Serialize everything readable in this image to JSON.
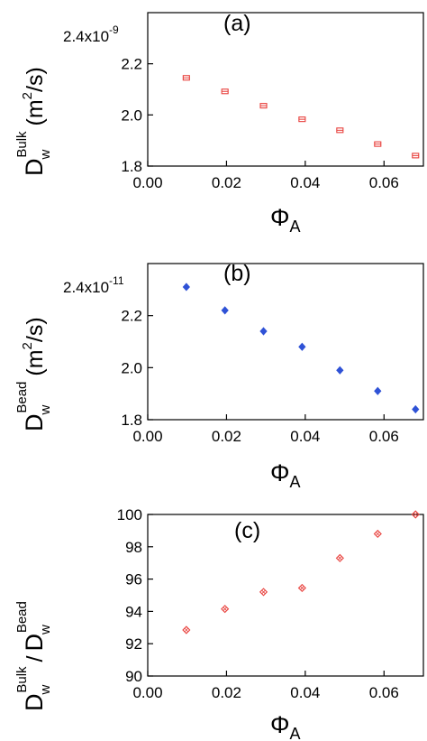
{
  "chart_data": [
    {
      "type": "scatter",
      "panel_label": "(a)",
      "y_scale_note": {
        "mantissa": "2.4x10",
        "exponent": "-9"
      },
      "xlabel": {
        "main": "Φ",
        "sub": "A"
      },
      "ylabel": {
        "main": "D",
        "sup": "Bulk",
        "sub": "w",
        "unit": "(m",
        "unit_sup": "2",
        "unit_end": "/s)"
      },
      "xlim": [
        0.0,
        0.07
      ],
      "ylim": [
        1.8,
        2.4
      ],
      "x_ticks": [
        "0.00",
        "0.02",
        "0.04",
        "0.06"
      ],
      "x_tick_values": [
        0.0,
        0.02,
        0.04,
        0.06
      ],
      "y_ticks": [
        "1.8",
        "2.0",
        "2.2"
      ],
      "y_tick_values": [
        1.8,
        2.0,
        2.2
      ],
      "marker": "square-bar",
      "color": "#e8403c",
      "x": [
        0.0098,
        0.0196,
        0.0294,
        0.0392,
        0.0488,
        0.0584,
        0.068
      ],
      "y": [
        2.145,
        2.092,
        2.036,
        1.983,
        1.94,
        1.886,
        1.841
      ]
    },
    {
      "type": "scatter",
      "panel_label": "(b)",
      "y_scale_note": {
        "mantissa": "2.4x10",
        "exponent": "-11"
      },
      "xlabel": {
        "main": "Φ",
        "sub": "A"
      },
      "ylabel": {
        "main": "D",
        "sup": "Bead",
        "sub": "w",
        "unit": "(m",
        "unit_sup": "2",
        "unit_end": "/s)"
      },
      "xlim": [
        0.0,
        0.07
      ],
      "ylim": [
        1.8,
        2.4
      ],
      "x_ticks": [
        "0.00",
        "0.02",
        "0.04",
        "0.06"
      ],
      "x_tick_values": [
        0.0,
        0.02,
        0.04,
        0.06
      ],
      "y_ticks": [
        "1.8",
        "2.0",
        "2.2"
      ],
      "y_tick_values": [
        1.8,
        2.0,
        2.2
      ],
      "marker": "diamond-filled",
      "color": "#2f52d6",
      "x": [
        0.0098,
        0.0196,
        0.0294,
        0.0392,
        0.0488,
        0.0584,
        0.068
      ],
      "y": [
        2.31,
        2.22,
        2.14,
        2.08,
        1.99,
        1.91,
        1.84
      ]
    },
    {
      "type": "scatter",
      "panel_label": "(c)",
      "xlabel": {
        "main": "Φ",
        "sub": "A"
      },
      "ylabel": {
        "num": "D",
        "num_sup": "Bulk",
        "num_sub": "w",
        "slash": "/",
        "den": "D",
        "den_sup": "Bead",
        "den_sub": "w"
      },
      "xlim": [
        0.0,
        0.07
      ],
      "ylim": [
        90,
        100
      ],
      "x_ticks": [
        "0.00",
        "0.02",
        "0.04",
        "0.06"
      ],
      "x_tick_values": [
        0.0,
        0.02,
        0.04,
        0.06
      ],
      "y_ticks": [
        "90",
        "92",
        "94",
        "96",
        "98",
        "100"
      ],
      "y_tick_values": [
        90,
        92,
        94,
        96,
        98,
        100
      ],
      "marker": "diamond-open",
      "color": "#e8403c",
      "x": [
        0.0098,
        0.0196,
        0.0294,
        0.0392,
        0.0488,
        0.0584,
        0.068
      ],
      "y": [
        92.85,
        94.15,
        95.2,
        95.45,
        97.3,
        98.8,
        100.0
      ]
    }
  ]
}
